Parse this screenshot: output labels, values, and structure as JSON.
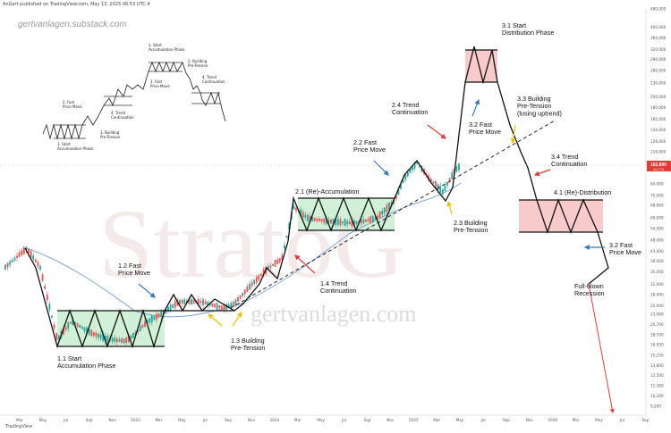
{
  "header": {
    "published_line": "AnGert published on TradingView.com, May 13, 2025 06:53 UTC-4",
    "site_watermark_top": "gertvanlagen.substack.com",
    "site_watermark_center": "gertvanlagen.com",
    "logo_text": "StratoG",
    "footer_brand": "TradingView"
  },
  "colors": {
    "candle_up": "#26a69a",
    "candle_down": "#ef5350",
    "zone_green": "#c8efd0",
    "zone_red": "#f7c4c4",
    "ma_line": "#7da7d9",
    "price_tag": "#e53935",
    "annotation_arrow_red": "#e53935",
    "annotation_arrow_blue": "#3b78c4",
    "annotation_arrow_yellow": "#f2c200"
  },
  "chart_data": {
    "type": "candlestick",
    "title": "",
    "y_scale": "log",
    "current_price_tag": {
      "value": "102,800",
      "sub": "1d 17h"
    },
    "x_tick_labels": [
      "Mar",
      "May",
      "Jul",
      "Sep",
      "Nov",
      "2023",
      "Mar",
      "May",
      "Jul",
      "Sep",
      "Nov",
      "2024",
      "Mar",
      "May",
      "Jul",
      "Sep",
      "Nov",
      "2025",
      "Mar",
      "May",
      "Jul",
      "Sep",
      "Nov",
      "2026",
      "Mar",
      "May",
      "Jul",
      "Sep"
    ],
    "y_tick_labels": [
      {
        "label": "480,000",
        "value": 480000
      },
      {
        "label": "400,000",
        "value": 400000
      },
      {
        "label": "360,000",
        "value": 360000
      },
      {
        "label": "320,000",
        "value": 320000
      },
      {
        "label": "290,000",
        "value": 290000
      },
      {
        "label": "260,000",
        "value": 260000
      },
      {
        "label": "230,000",
        "value": 230000
      },
      {
        "label": "200,000",
        "value": 200000
      },
      {
        "label": "180,000",
        "value": 180000
      },
      {
        "label": "160,000",
        "value": 160000
      },
      {
        "label": "144,000",
        "value": 144000
      },
      {
        "label": "128,000",
        "value": 128000
      },
      {
        "label": "116,000",
        "value": 116000
      },
      {
        "label": "84,000",
        "value": 84000
      },
      {
        "label": "75,000",
        "value": 75000
      },
      {
        "label": "68,000",
        "value": 68000
      },
      {
        "label": "60,000",
        "value": 60000
      },
      {
        "label": "54,000",
        "value": 54000
      },
      {
        "label": "48,000",
        "value": 48000
      },
      {
        "label": "43,000",
        "value": 43000
      },
      {
        "label": "39,000",
        "value": 39000
      },
      {
        "label": "35,000",
        "value": 35000
      },
      {
        "label": "31,000",
        "value": 31000
      },
      {
        "label": "28,000",
        "value": 28000
      },
      {
        "label": "25,000",
        "value": 25000
      },
      {
        "label": "23,000",
        "value": 23000
      },
      {
        "label": "20,700",
        "value": 20700
      },
      {
        "label": "18,700",
        "value": 18700
      },
      {
        "label": "16,950",
        "value": 16950
      },
      {
        "label": "15,250",
        "value": 15250
      },
      {
        "label": "13,800",
        "value": 13800
      },
      {
        "label": "12,500",
        "value": 12500
      },
      {
        "label": "11,300",
        "value": 11300
      },
      {
        "label": "10,200",
        "value": 10200
      },
      {
        "label": "9,200",
        "value": 9200
      }
    ],
    "annotations": [
      {
        "lines": [
          "1.1 Start",
          "Accumulation Phase"
        ],
        "arrow": "none"
      },
      {
        "lines": [
          "1.2 Fast",
          "Price Move"
        ],
        "arrow": "blue"
      },
      {
        "lines": [
          "1.3 Building",
          "Pre-Tension"
        ],
        "arrow": "yellow"
      },
      {
        "lines": [
          "1.4 Trend",
          "Continuation"
        ],
        "arrow": "red"
      },
      {
        "lines": [
          "2.1 (Re)-Accumulation"
        ],
        "arrow": "none"
      },
      {
        "lines": [
          "2.2 Fast",
          "Price Move"
        ],
        "arrow": "blue"
      },
      {
        "lines": [
          "2.3 Building",
          "Pre-Tension"
        ],
        "arrow": "yellow"
      },
      {
        "lines": [
          "2.4 Trend",
          "Continuation"
        ],
        "arrow": "red"
      },
      {
        "lines": [
          "3.1 Start",
          "Distribution Phase"
        ],
        "arrow": "none"
      },
      {
        "lines": [
          "3.2 Fast",
          "Price Move"
        ],
        "arrow": "blue"
      },
      {
        "lines": [
          "3.3 Building",
          "Pre-Tension",
          "(losing uptrend)"
        ],
        "arrow": "yellow"
      },
      {
        "lines": [
          "3.4 Trend",
          "Continuation"
        ],
        "arrow": "red"
      },
      {
        "lines": [
          "4.1 (Re)-Distribution"
        ],
        "arrow": "none"
      },
      {
        "lines": [
          "3.2 Fast",
          "Price Move"
        ],
        "arrow": "blue"
      },
      {
        "lines": [
          "Full-blown",
          "Recession"
        ],
        "arrow": "red"
      }
    ],
    "inset_schematic": {
      "labels": [
        [
          "1. Start",
          "Accumulation Phase"
        ],
        [
          "2. Fast",
          "Price Move"
        ],
        [
          "3. Building",
          "Pre-Tension"
        ],
        [
          "4. Trend",
          "Continuation"
        ],
        [
          "1. Start",
          "Accumulation Phase"
        ],
        [
          "2. Fast",
          "Price Move"
        ],
        [
          "3. Building",
          "Pre-Tension"
        ],
        [
          "4. Trend",
          "Continuation"
        ]
      ]
    }
  }
}
